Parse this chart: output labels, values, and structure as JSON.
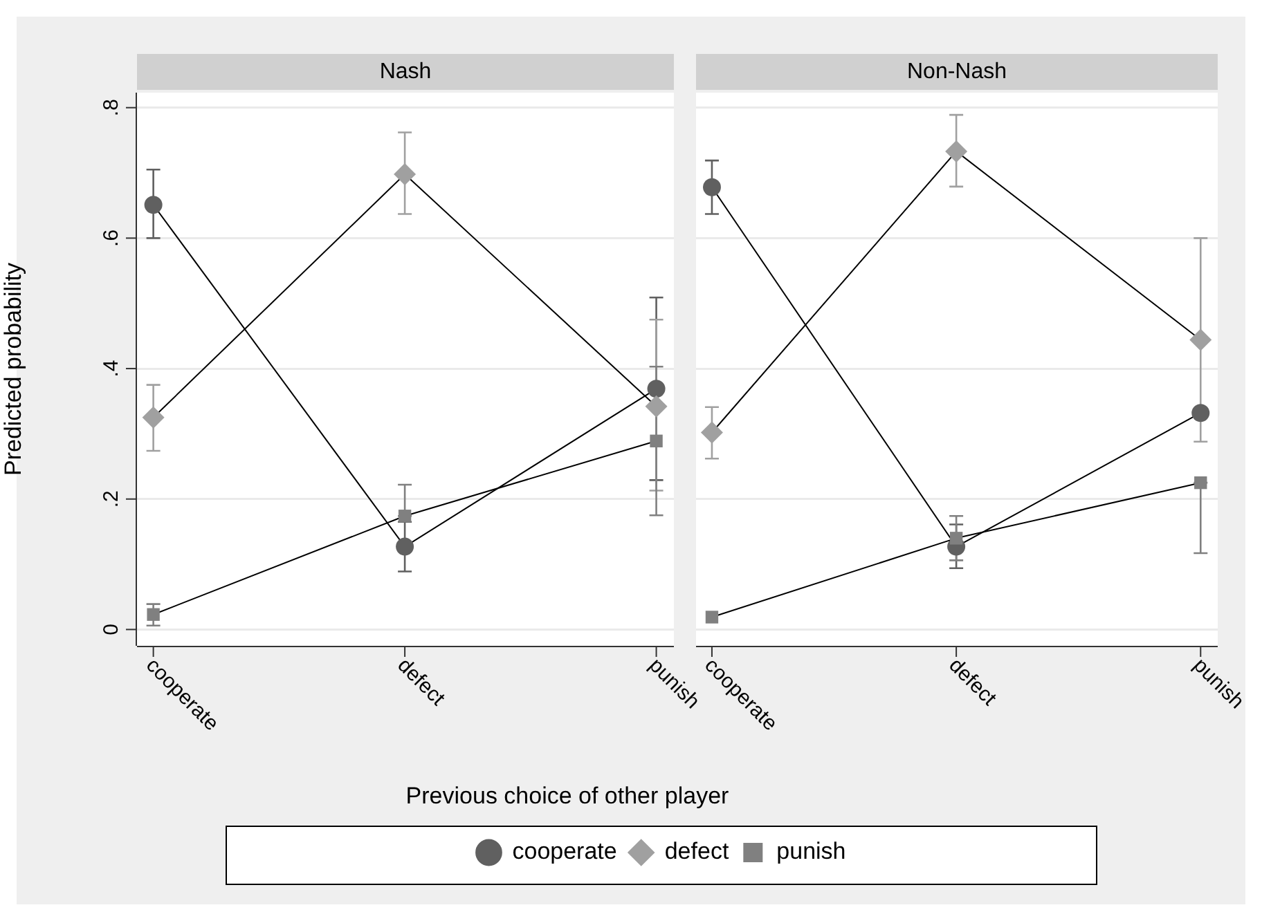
{
  "chart_data": [
    {
      "type": "line",
      "title": "Nash",
      "xlabel": "Previous choice of other player",
      "ylabel": "Predicted probability",
      "categories": [
        "cooperate",
        "defect",
        "punish"
      ],
      "ylim": [
        -0.025,
        0.823
      ],
      "yticks": [
        0,
        {
          "value": 0.2,
          "label": ".2"
        },
        {
          "value": 0.4,
          "label": ".4"
        },
        {
          "value": 0.6,
          "label": ".6"
        },
        {
          "value": 0.8,
          "label": ".8"
        }
      ],
      "grid": "y",
      "legend": "bottom",
      "series": [
        {
          "name": "cooperate",
          "color": "#606060",
          "marker": "circle",
          "values": [
            0.651,
            0.127,
            0.369
          ],
          "errors": [
            [
              0.6,
              0.705
            ],
            [
              0.089,
              0.165
            ],
            [
              0.229,
              0.509
            ]
          ]
        },
        {
          "name": "defect",
          "color": "#a0a0a0",
          "marker": "diamond",
          "values": [
            0.325,
            0.698,
            0.342
          ],
          "errors": [
            [
              0.274,
              0.375
            ],
            [
              0.637,
              0.762
            ],
            [
              0.213,
              0.475
            ]
          ]
        },
        {
          "name": "punish",
          "color": "#808080",
          "marker": "square",
          "values": [
            0.023,
            0.174,
            0.289
          ],
          "errors": [
            [
              0.006,
              0.039
            ],
            [
              0.174,
              0.222
            ],
            [
              0.175,
              0.403
            ]
          ]
        }
      ]
    },
    {
      "type": "line",
      "title": "Non-Nash",
      "categories": [
        "cooperate",
        "defect",
        "punish"
      ],
      "ylim": [
        -0.025,
        0.823
      ],
      "yticks": [
        0,
        0.2,
        0.4,
        0.6,
        0.8
      ],
      "grid": "y",
      "tick_labels": "x",
      "series": [
        {
          "color": "#606060",
          "marker": "circle",
          "values": [
            0.678,
            0.127,
            0.332
          ],
          "errors": [
            [
              0.637,
              0.719
            ],
            [
              0.094,
              0.161
            ],
            null
          ]
        },
        {
          "color": "#a0a0a0",
          "marker": "diamond",
          "values": [
            0.302,
            0.733,
            0.444
          ],
          "errors": [
            [
              0.262,
              0.341
            ],
            [
              0.679,
              0.789
            ],
            [
              0.288,
              0.6
            ]
          ]
        },
        {
          "color": "#808080",
          "marker": "square",
          "values": [
            0.019,
            0.14,
            0.225
          ],
          "errors": [
            null,
            [
              0.106,
              0.174
            ],
            [
              0.117,
              0.225
            ]
          ]
        }
      ]
    }
  ]
}
